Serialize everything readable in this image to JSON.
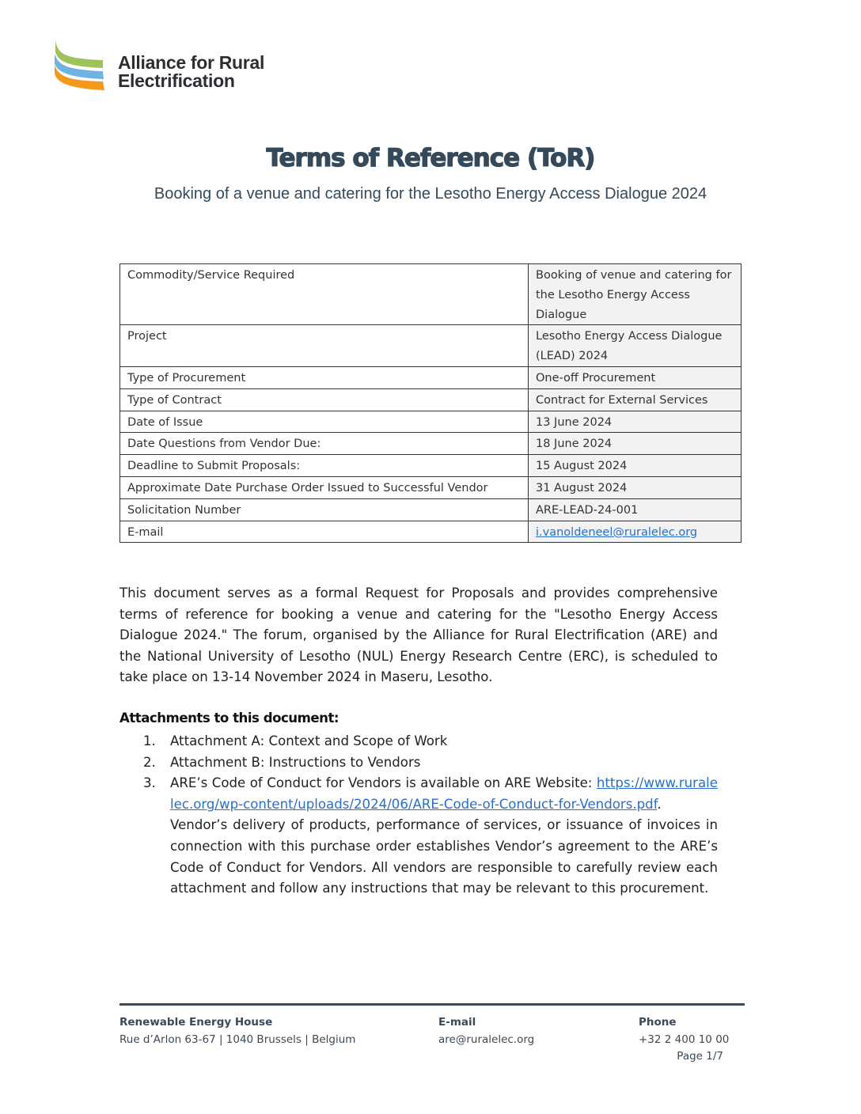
{
  "header": {
    "logo_text_line1": "Alliance for Rural",
    "logo_text_line2": "Electrification",
    "logo_colors": [
      "#9dc35a",
      "#6fb3e0",
      "#f39a1e"
    ]
  },
  "title": "Terms of Reference (ToR)",
  "subtitle": "Booking of a venue and catering for the Lesotho Energy Access Dialogue 2024",
  "table": {
    "rows": [
      {
        "label": "Commodity/Service Required",
        "value": "Booking of venue and catering for the Lesotho Energy Access Dialogue"
      },
      {
        "label": "Project",
        "value": "Lesotho Energy Access Dialogue (LEAD) 2024"
      },
      {
        "label": "Type of Procurement",
        "value": "One-off Procurement"
      },
      {
        "label": "Type of Contract",
        "value": "Contract for External Services"
      },
      {
        "label": "Date of Issue",
        "value": "13 June 2024"
      },
      {
        "label": "Date Questions from Vendor Due:",
        "value": "18 June 2024"
      },
      {
        "label": "Deadline to Submit Proposals:",
        "value": "15 August 2024"
      },
      {
        "label": "Approximate Date Purchase Order Issued to Successful Vendor",
        "value": "31 August 2024"
      },
      {
        "label": "Solicitation Number",
        "value": "ARE-LEAD-24-001"
      },
      {
        "label": "E-mail",
        "value": "i.vanoldeneel@ruralelec.org"
      }
    ]
  },
  "body": "This document serves as a formal Request for Proposals and provides comprehensive terms of reference for booking a venue and catering for the \"Lesotho Energy Access Dialogue 2024.\" The forum, organised by the Alliance for Rural Electrification (ARE) and the National University of Lesotho (NUL) Energy Research Centre (ERC), is scheduled to take place on  13-14 November 2024 in Maseru, Lesotho.",
  "attachments": {
    "heading": "Attachments to this document:",
    "items": [
      {
        "num": "1.",
        "text": "Attachment A: Context and Scope of Work"
      },
      {
        "num": "2.",
        "text": "Attachment B:  Instructions to Vendors"
      },
      {
        "num": "3.",
        "text_before": "ARE’s Code of Conduct for Vendors is available on ARE Website: ",
        "link": "https://www.ruralelec.org/wp-content/uploads/2024/06/ARE-Code-of-Conduct-for-Vendors.pdf",
        "text_after": ". Vendor’s delivery of products, performance of services, or issuance of invoices in connection with this purchase order establishes Vendor’s agreement to the ARE’s Code of Conduct for Vendors. All vendors are responsible to carefully review each attachment and follow any instructions that may be relevant to this procurement."
      }
    ]
  },
  "footer": {
    "address_heading": "Renewable Energy House",
    "address": "Rue d’Arlon 63-67 | 1040 Brussels | Belgium",
    "email_heading": "E-mail",
    "email": "are@ruralelec.org",
    "phone_heading": "Phone",
    "phone": "+32 2 400 10 00",
    "page": "Page 1/7"
  }
}
